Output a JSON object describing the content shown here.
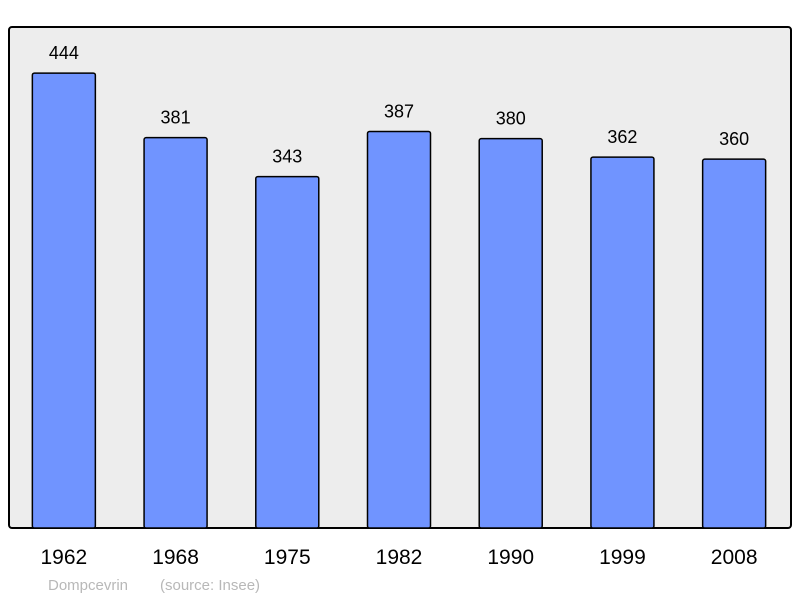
{
  "chart_data": {
    "type": "bar",
    "categories": [
      "1962",
      "1968",
      "1975",
      "1982",
      "1990",
      "1999",
      "2008"
    ],
    "values": [
      444,
      381,
      343,
      387,
      380,
      362,
      360
    ],
    "data_labels": true,
    "ylim": [
      0,
      489
    ],
    "grid": false,
    "colors": {
      "bar": "#7094ff",
      "background": "#ededed",
      "frame": "#000000",
      "footer": "#b8b8b8"
    }
  },
  "footer": {
    "place": "Dompcevrin",
    "source": "(source: Insee)"
  }
}
